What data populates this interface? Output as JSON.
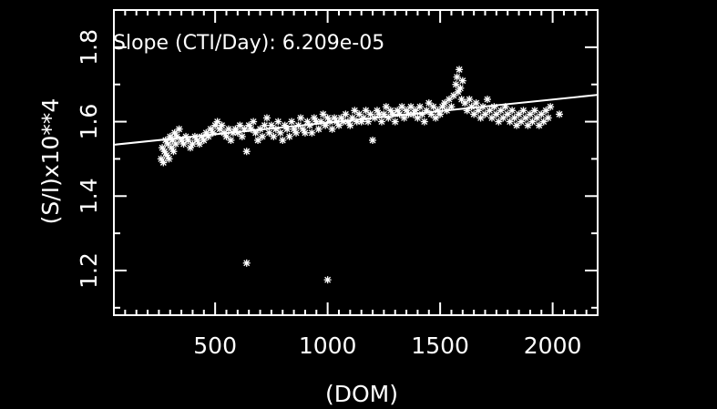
{
  "chart_data": {
    "type": "scatter",
    "annotation": "Slope (CTI/Day): 6.209e-05",
    "xlabel": "(DOM)",
    "ylabel": "(S/I)x10**4",
    "xlim": [
      50,
      2200
    ],
    "ylim": [
      1.08,
      1.9
    ],
    "xticks": [
      500,
      1000,
      1500,
      2000
    ],
    "xtick_labels": [
      "500",
      "1000",
      "1500",
      "2000"
    ],
    "yticks": [
      1.2,
      1.4,
      1.6,
      1.8
    ],
    "ytick_labels": [
      "1.2",
      "1.4",
      "1.6",
      "1.8"
    ],
    "fit_line": {
      "x": [
        50,
        2200
      ],
      "y": [
        1.538,
        1.672
      ]
    },
    "points": [
      [
        260,
        1.5
      ],
      [
        265,
        1.53
      ],
      [
        270,
        1.49
      ],
      [
        275,
        1.52
      ],
      [
        280,
        1.55
      ],
      [
        285,
        1.51
      ],
      [
        290,
        1.54
      ],
      [
        295,
        1.5
      ],
      [
        300,
        1.56
      ],
      [
        305,
        1.53
      ],
      [
        310,
        1.55
      ],
      [
        315,
        1.52
      ],
      [
        320,
        1.57
      ],
      [
        325,
        1.54
      ],
      [
        330,
        1.56
      ],
      [
        340,
        1.58
      ],
      [
        350,
        1.55
      ],
      [
        360,
        1.54
      ],
      [
        370,
        1.56
      ],
      [
        380,
        1.55
      ],
      [
        390,
        1.53
      ],
      [
        400,
        1.54
      ],
      [
        410,
        1.56
      ],
      [
        420,
        1.55
      ],
      [
        430,
        1.54
      ],
      [
        440,
        1.56
      ],
      [
        450,
        1.55
      ],
      [
        460,
        1.57
      ],
      [
        470,
        1.56
      ],
      [
        480,
        1.58
      ],
      [
        490,
        1.57
      ],
      [
        500,
        1.59
      ],
      [
        510,
        1.6
      ],
      [
        520,
        1.58
      ],
      [
        530,
        1.59
      ],
      [
        540,
        1.57
      ],
      [
        550,
        1.56
      ],
      [
        560,
        1.58
      ],
      [
        570,
        1.55
      ],
      [
        580,
        1.57
      ],
      [
        590,
        1.58
      ],
      [
        600,
        1.57
      ],
      [
        610,
        1.59
      ],
      [
        620,
        1.56
      ],
      [
        630,
        1.58
      ],
      [
        640,
        1.52
      ],
      [
        650,
        1.59
      ],
      [
        660,
        1.58
      ],
      [
        670,
        1.6
      ],
      [
        680,
        1.57
      ],
      [
        690,
        1.55
      ],
      [
        700,
        1.58
      ],
      [
        710,
        1.56
      ],
      [
        720,
        1.59
      ],
      [
        730,
        1.61
      ],
      [
        740,
        1.57
      ],
      [
        750,
        1.59
      ],
      [
        760,
        1.56
      ],
      [
        770,
        1.58
      ],
      [
        780,
        1.6
      ],
      [
        790,
        1.57
      ],
      [
        800,
        1.55
      ],
      [
        810,
        1.59
      ],
      [
        820,
        1.58
      ],
      [
        830,
        1.56
      ],
      [
        840,
        1.6
      ],
      [
        850,
        1.58
      ],
      [
        860,
        1.57
      ],
      [
        870,
        1.59
      ],
      [
        880,
        1.61
      ],
      [
        890,
        1.58
      ],
      [
        900,
        1.57
      ],
      [
        910,
        1.6
      ],
      [
        920,
        1.59
      ],
      [
        930,
        1.57
      ],
      [
        940,
        1.61
      ],
      [
        950,
        1.6
      ],
      [
        960,
        1.58
      ],
      [
        970,
        1.6
      ],
      [
        980,
        1.62
      ],
      [
        990,
        1.59
      ],
      [
        1000,
        1.61
      ],
      [
        1010,
        1.6
      ],
      [
        1020,
        1.58
      ],
      [
        1030,
        1.61
      ],
      [
        1040,
        1.6
      ],
      [
        1050,
        1.59
      ],
      [
        1060,
        1.61
      ],
      [
        1070,
        1.6
      ],
      [
        1080,
        1.62
      ],
      [
        1090,
        1.6
      ],
      [
        1100,
        1.59
      ],
      [
        1110,
        1.61
      ],
      [
        1120,
        1.63
      ],
      [
        1130,
        1.6
      ],
      [
        1140,
        1.62
      ],
      [
        1150,
        1.6
      ],
      [
        1160,
        1.61
      ],
      [
        1170,
        1.63
      ],
      [
        1180,
        1.6
      ],
      [
        1190,
        1.62
      ],
      [
        1200,
        1.55
      ],
      [
        1210,
        1.61
      ],
      [
        1220,
        1.63
      ],
      [
        1230,
        1.62
      ],
      [
        1240,
        1.6
      ],
      [
        1250,
        1.62
      ],
      [
        1260,
        1.64
      ],
      [
        1270,
        1.61
      ],
      [
        1280,
        1.63
      ],
      [
        1290,
        1.62
      ],
      [
        1300,
        1.6
      ],
      [
        1310,
        1.63
      ],
      [
        1320,
        1.62
      ],
      [
        1330,
        1.64
      ],
      [
        1340,
        1.61
      ],
      [
        1350,
        1.63
      ],
      [
        1360,
        1.62
      ],
      [
        1370,
        1.64
      ],
      [
        1380,
        1.62
      ],
      [
        1390,
        1.63
      ],
      [
        1400,
        1.61
      ],
      [
        1410,
        1.64
      ],
      [
        1420,
        1.62
      ],
      [
        1430,
        1.6
      ],
      [
        1440,
        1.63
      ],
      [
        1450,
        1.65
      ],
      [
        1460,
        1.62
      ],
      [
        1470,
        1.64
      ],
      [
        1480,
        1.61
      ],
      [
        1490,
        1.63
      ],
      [
        1500,
        1.62
      ],
      [
        1510,
        1.64
      ],
      [
        1520,
        1.65
      ],
      [
        1530,
        1.63
      ],
      [
        1540,
        1.66
      ],
      [
        1550,
        1.64
      ],
      [
        1560,
        1.67
      ],
      [
        1570,
        1.7
      ],
      [
        1575,
        1.72
      ],
      [
        1580,
        1.68
      ],
      [
        1585,
        1.74
      ],
      [
        1590,
        1.69
      ],
      [
        1595,
        1.66
      ],
      [
        1600,
        1.71
      ],
      [
        1610,
        1.65
      ],
      [
        1620,
        1.63
      ],
      [
        1630,
        1.66
      ],
      [
        1640,
        1.64
      ],
      [
        1650,
        1.62
      ],
      [
        1660,
        1.65
      ],
      [
        1670,
        1.63
      ],
      [
        1680,
        1.61
      ],
      [
        1690,
        1.64
      ],
      [
        1700,
        1.62
      ],
      [
        1710,
        1.66
      ],
      [
        1720,
        1.63
      ],
      [
        1730,
        1.61
      ],
      [
        1740,
        1.64
      ],
      [
        1750,
        1.62
      ],
      [
        1760,
        1.6
      ],
      [
        1770,
        1.63
      ],
      [
        1780,
        1.61
      ],
      [
        1790,
        1.64
      ],
      [
        1800,
        1.62
      ],
      [
        1810,
        1.6
      ],
      [
        1820,
        1.63
      ],
      [
        1830,
        1.61
      ],
      [
        1840,
        1.59
      ],
      [
        1850,
        1.62
      ],
      [
        1860,
        1.6
      ],
      [
        1870,
        1.63
      ],
      [
        1880,
        1.61
      ],
      [
        1890,
        1.59
      ],
      [
        1900,
        1.62
      ],
      [
        1910,
        1.6
      ],
      [
        1920,
        1.63
      ],
      [
        1930,
        1.61
      ],
      [
        1940,
        1.59
      ],
      [
        1950,
        1.62
      ],
      [
        1960,
        1.6
      ],
      [
        1970,
        1.63
      ],
      [
        1980,
        1.61
      ],
      [
        1990,
        1.64
      ],
      [
        2030,
        1.62
      ],
      [
        640,
        1.22
      ],
      [
        1000,
        1.175
      ]
    ]
  }
}
